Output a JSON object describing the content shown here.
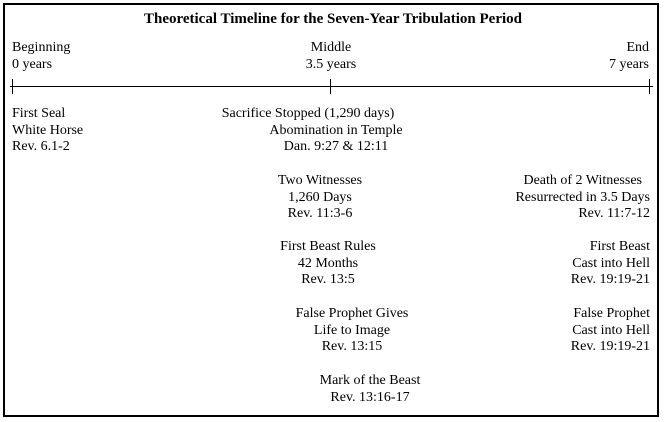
{
  "title": "Theoretical Timeline for the Seven-Year Tribulation Period",
  "markers": {
    "beginning": {
      "label": "Beginning",
      "value": "0 years"
    },
    "middle": {
      "label": "Middle",
      "value": "3.5 years"
    },
    "end": {
      "label": "End",
      "value": "7 years"
    }
  },
  "events": {
    "first_seal": [
      "First Seal",
      "White Horse",
      "Rev. 6.1-2"
    ],
    "sacrifice_stopped": [
      "Sacrifice Stopped (1,290 days)",
      "Abomination in Temple",
      "Dan. 9:27 & 12:11"
    ],
    "two_witnesses": [
      "Two Witnesses",
      "1,260 Days",
      "Rev. 11:3-6"
    ],
    "first_beast_rules": [
      "First Beast Rules",
      "42 Months",
      "Rev. 13:5"
    ],
    "false_prophet_gives": [
      "False Prophet Gives",
      "Life to Image",
      "Rev. 13:15"
    ],
    "mark_of_beast": [
      "Mark of the Beast",
      "Rev. 13:16-17"
    ],
    "death_of_witnesses": [
      "Death of 2 Witnesses",
      "Resurrected in 3.5 Days",
      "Rev. 11:7-12"
    ],
    "first_beast_hell": [
      "First Beast",
      "Cast into Hell",
      "Rev. 19:19-21"
    ],
    "false_prophet_hell": [
      "False Prophet",
      "Cast into Hell",
      "Rev. 19:19-21"
    ]
  }
}
